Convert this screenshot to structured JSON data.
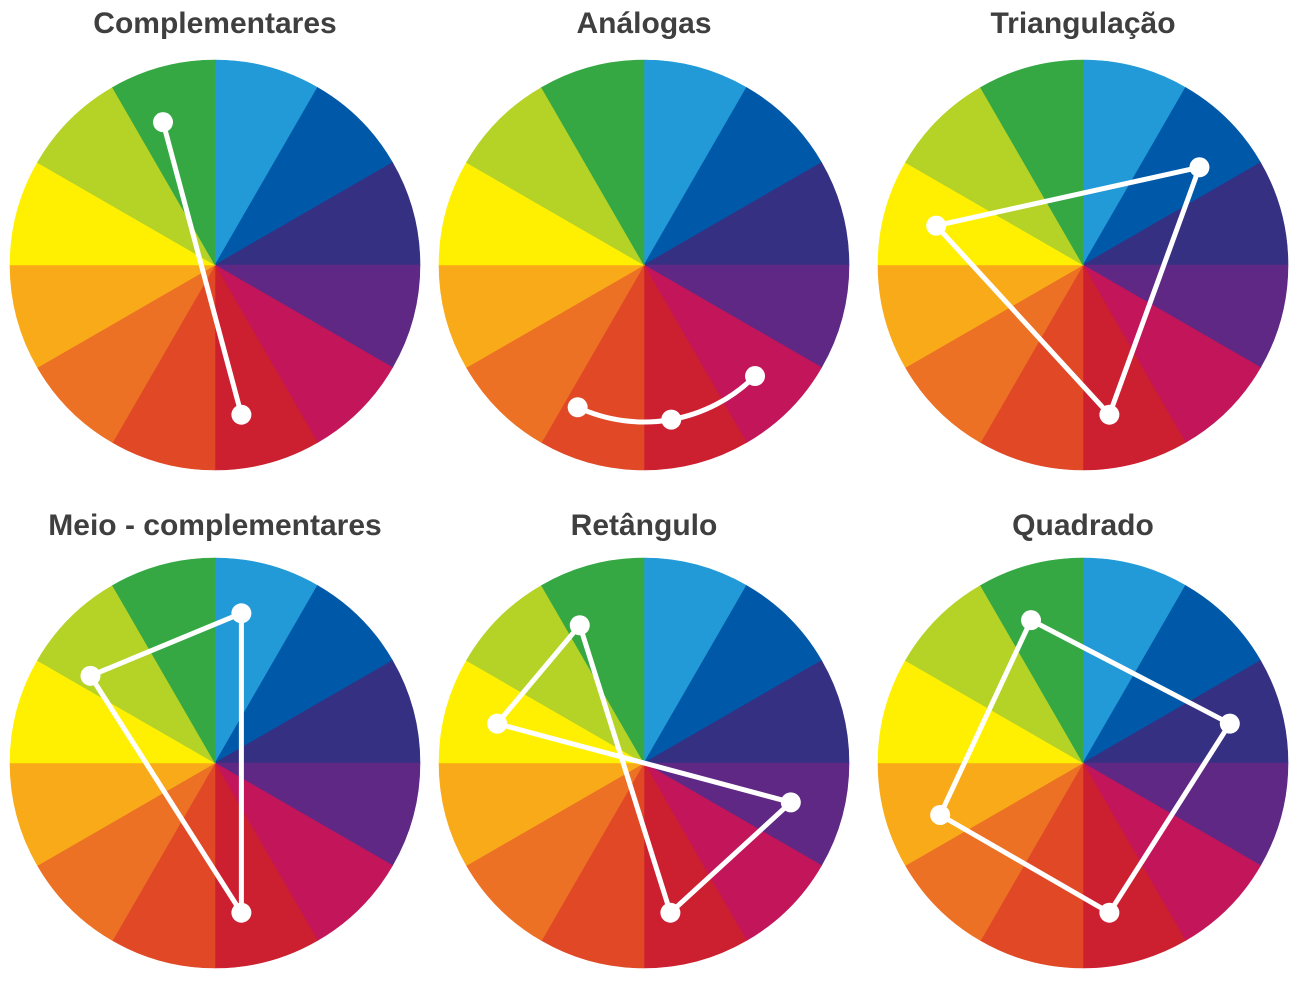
{
  "wheel": {
    "segment_colors": [
      "#229ad8",
      "#0058a9",
      "#363082",
      "#5e2884",
      "#c3155a",
      "#cc1f2f",
      "#e04826",
      "#ec7125",
      "#f8aa19",
      "#fff002",
      "#b5d227",
      "#35a844"
    ]
  },
  "scheme_styles": {
    "line_color": "#ffffff",
    "title_color": "#3f3f3f",
    "background": "#ffffff"
  },
  "schemes": [
    {
      "id": "complementares",
      "title": "Complementares",
      "shape": "open",
      "marker_angles": [
        -20,
        170
      ]
    },
    {
      "id": "analogas",
      "title": "Análogas",
      "shape": "arc",
      "marker_angles": [
        -155,
        170,
        135
      ]
    },
    {
      "id": "triangulacao",
      "title": "Triangulação",
      "shape": "closed",
      "marker_angles": [
        50,
        170,
        -75
      ]
    },
    {
      "id": "meio-complementares",
      "title": "Meio - complementares",
      "shape": "closed",
      "marker_angles": [
        -55,
        10,
        170
      ]
    },
    {
      "id": "retangulo",
      "title": "Retângulo",
      "shape": "closed",
      "marker_angles": [
        -25,
        -75,
        105,
        170
      ]
    },
    {
      "id": "quadrado",
      "title": "Quadrado",
      "shape": "closed",
      "marker_angles": [
        -20,
        75,
        170,
        -110
      ]
    }
  ]
}
